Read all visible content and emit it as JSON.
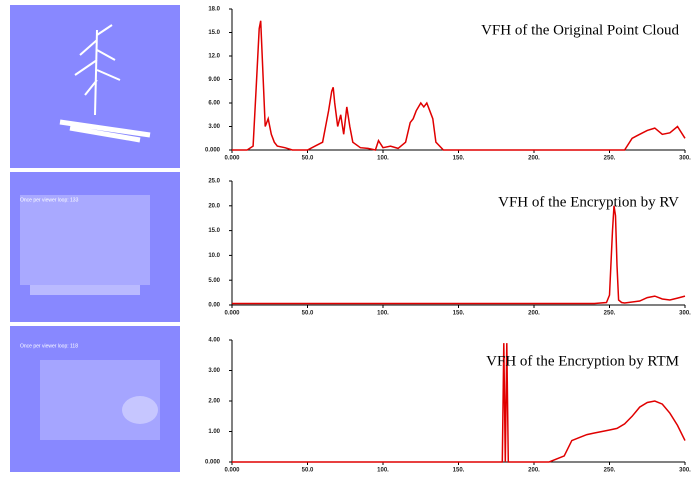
{
  "images": [
    {
      "caption": null
    },
    {
      "caption": "Once per viewer loop: 133"
    },
    {
      "caption": "Once per viewer loop: 118"
    }
  ],
  "chart_data": [
    {
      "type": "line",
      "title": "VFH of the Original Point Cloud",
      "grid": false,
      "xlim": [
        0,
        300
      ],
      "ylim": [
        0,
        18
      ],
      "xticks": [
        {
          "value": 0,
          "label": "0.000"
        },
        {
          "value": 50,
          "label": "50.0"
        },
        {
          "value": 100,
          "label": "100."
        },
        {
          "value": 150,
          "label": "150."
        },
        {
          "value": 200,
          "label": "200."
        },
        {
          "value": 250,
          "label": "250."
        },
        {
          "value": 300,
          "label": "300."
        }
      ],
      "yticks": [
        {
          "value": 0,
          "label": "0.000"
        },
        {
          "value": 3,
          "label": "3.00"
        },
        {
          "value": 6,
          "label": "6.00"
        },
        {
          "value": 9,
          "label": "9.00"
        },
        {
          "value": 12,
          "label": "12.0"
        },
        {
          "value": 15,
          "label": "15.0"
        },
        {
          "value": 18,
          "label": "18.0"
        }
      ],
      "x": [
        0,
        10,
        14,
        16,
        18,
        19,
        20,
        22,
        24,
        26,
        28,
        30,
        35,
        40,
        45,
        50,
        55,
        60,
        62,
        64,
        66,
        67,
        68,
        70,
        72,
        74,
        76,
        78,
        80,
        85,
        90,
        95,
        97,
        100,
        105,
        110,
        115,
        118,
        120,
        122,
        125,
        127,
        129,
        131,
        133,
        135,
        140,
        150,
        200,
        250,
        255,
        260,
        265,
        270,
        275,
        280,
        285,
        290,
        295,
        300
      ],
      "series": [
        {
          "color": "#e00000",
          "values": [
            0,
            0,
            0.5,
            8,
            15.5,
            16.5,
            12,
            3,
            4,
            2,
            1,
            0.5,
            0.3,
            0,
            0,
            0,
            0.5,
            1,
            3,
            5,
            7.5,
            8,
            6,
            3,
            4.5,
            2,
            5.5,
            3,
            1,
            0.3,
            0.2,
            0,
            1.2,
            0.3,
            0.5,
            0.2,
            1,
            3.5,
            4,
            5,
            6,
            5.5,
            6,
            5,
            4,
            1,
            0,
            0,
            0,
            0,
            0,
            0,
            1.5,
            2,
            2.5,
            2.8,
            2,
            2.2,
            3,
            1.5
          ]
        }
      ]
    },
    {
      "type": "line",
      "title": "VFH of the Encryption by RV",
      "grid": false,
      "xlim": [
        0,
        300
      ],
      "ylim": [
        0,
        25
      ],
      "xticks": [
        {
          "value": 0,
          "label": "0.000"
        },
        {
          "value": 50,
          "label": "50.0"
        },
        {
          "value": 100,
          "label": "100."
        },
        {
          "value": 150,
          "label": "150."
        },
        {
          "value": 200,
          "label": "200."
        },
        {
          "value": 250,
          "label": "250."
        },
        {
          "value": 300,
          "label": "300."
        }
      ],
      "yticks": [
        {
          "value": 0,
          "label": "0.00"
        },
        {
          "value": 5,
          "label": "5.00"
        },
        {
          "value": 10,
          "label": "10.0"
        },
        {
          "value": 15,
          "label": "15.0"
        },
        {
          "value": 20,
          "label": "20.0"
        },
        {
          "value": 25,
          "label": "25.0"
        }
      ],
      "x": [
        0,
        240,
        248,
        250,
        252,
        253,
        254,
        255,
        256,
        258,
        260,
        270,
        275,
        280,
        285,
        290,
        295,
        300
      ],
      "series": [
        {
          "color": "#e00000",
          "values": [
            0.3,
            0.3,
            0.5,
            2,
            15,
            20,
            18,
            8,
            1,
            0.5,
            0.4,
            0.8,
            1.5,
            1.8,
            1.2,
            1,
            1.4,
            1.8
          ]
        }
      ]
    },
    {
      "type": "line",
      "title": "VFH of the Encryption by RTM",
      "grid": false,
      "xlim": [
        0,
        300
      ],
      "ylim": [
        0,
        4
      ],
      "xticks": [
        {
          "value": 0,
          "label": "0.000"
        },
        {
          "value": 50,
          "label": "50.0"
        },
        {
          "value": 100,
          "label": "100."
        },
        {
          "value": 150,
          "label": "150."
        },
        {
          "value": 200,
          "label": "200."
        },
        {
          "value": 250,
          "label": "250."
        },
        {
          "value": 300,
          "label": "300."
        }
      ],
      "yticks": [
        {
          "value": 0,
          "label": "0.000"
        },
        {
          "value": 1,
          "label": "1.00"
        },
        {
          "value": 2,
          "label": "2.00"
        },
        {
          "value": 3,
          "label": "3.00"
        },
        {
          "value": 4,
          "label": "4.00"
        }
      ],
      "x": [
        0,
        179,
        180,
        181,
        182,
        183,
        184,
        210,
        220,
        225,
        230,
        235,
        240,
        245,
        250,
        255,
        260,
        265,
        270,
        275,
        280,
        285,
        290,
        295,
        300
      ],
      "series": [
        {
          "color": "#e00000",
          "values": [
            0,
            0,
            3.9,
            0,
            3.9,
            0,
            0,
            0,
            0.2,
            0.7,
            0.8,
            0.9,
            0.95,
            1,
            1.05,
            1.1,
            1.25,
            1.5,
            1.8,
            1.95,
            2,
            1.9,
            1.6,
            1.2,
            0.7
          ]
        }
      ]
    }
  ]
}
